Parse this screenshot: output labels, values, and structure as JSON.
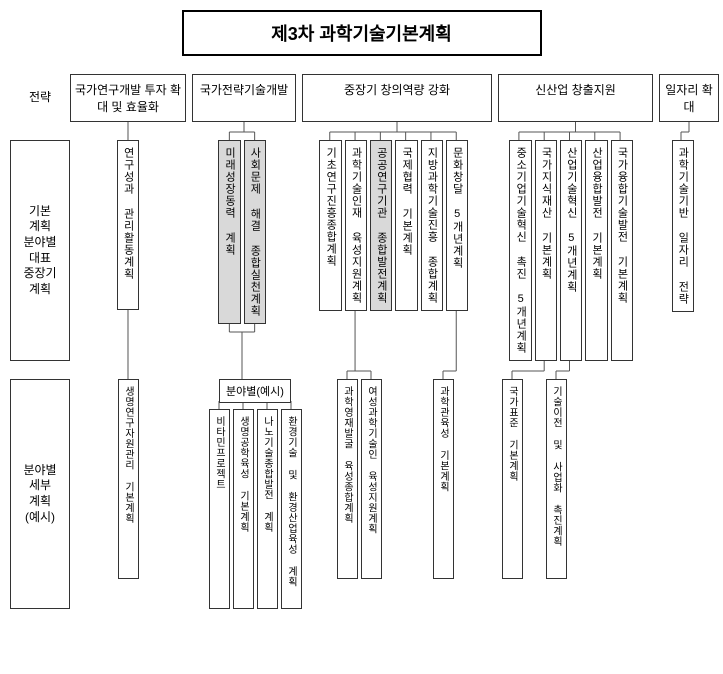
{
  "title": "제3차 과학기술기본계획",
  "rowlabels": {
    "strategy": "전략",
    "midplan": "기본\n계획\n분야별\n대표\n중장기\n계획",
    "subplan": "분야별\n세부\n계획\n(예시)"
  },
  "strategies": {
    "s1": "국가연구개발 투자\n확대 및 효율화",
    "s2": "국가전략기술개발",
    "s3": "중장기 창의역량 강화",
    "s4": "신산업 창출지원",
    "s5": "일자리 확대"
  },
  "midplans": {
    "g1": [
      "연구성과 관리활동계획"
    ],
    "g2": [
      "미래성장동력 계획",
      "사회문제 해결 종합실천계획"
    ],
    "g3": [
      "기초연구진흥종합계획",
      "과학기술인재 육성지원계획",
      "공공연구기관 종합발전계획",
      "국제협력 기본계획",
      "지방과학기술진흥 종합계획",
      "문화창달 5개년계획"
    ],
    "g4": [
      "중소기업기술혁신 촉진 5개년계획",
      "국가지식재산 기본계획",
      "산업기술혁신 5개년계획",
      "산업융합발전 기본계획",
      "국가융합기술발전 기본계획"
    ],
    "g5": [
      "과학기술기반 일자리 전략"
    ]
  },
  "sublabel": "분야별(예시)",
  "subplans": {
    "g1": [
      "생명연구자원관리 기본계획"
    ],
    "g2": [
      "비타민프로젝트",
      "생명공학육성 기본계획",
      "나노기술종합발전 계획",
      "환경기술 및 환경산업육성 계획"
    ],
    "g3a": [
      "과학영재발굴 육성종합계획",
      "여성과학기술인 육성지원계획"
    ],
    "g3b": [
      "과학관육성 기본계획"
    ],
    "g4a": [
      "국가표준 기본계획"
    ],
    "g4b": [
      "기술이전 및 사업화 촉진계획"
    ]
  },
  "colors": {
    "border": "#333333",
    "highlight": "#d9d9d9",
    "background": "#ffffff",
    "line": "#555555"
  }
}
